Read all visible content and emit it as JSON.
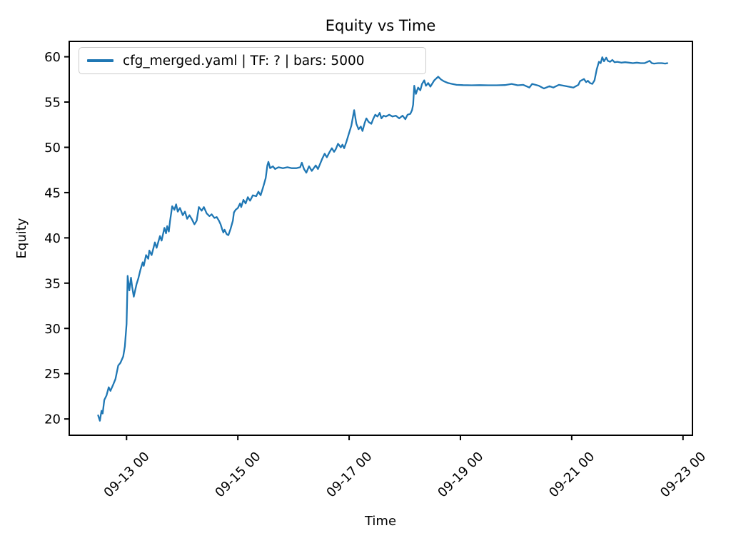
{
  "figure": {
    "title": "Equity vs Time",
    "x_axis_label": "Time",
    "y_axis_label": "Equity",
    "legend": {
      "label": "cfg_merged.yaml | TF: ? | bars: 5000",
      "line_color": "#1f77b4"
    }
  },
  "chart_data": {
    "type": "line",
    "title": "Equity vs Time",
    "xlabel": "Time",
    "ylabel": "Equity",
    "grid": false,
    "legend_position": "upper left",
    "legend_entries": [
      "cfg_merged.yaml | TF: ? | bars: 5000"
    ],
    "line_color": "#1f77b4",
    "x_unit": "days since 09-12 00:00",
    "xlim": [
      -0.03,
      11.17
    ],
    "ylim": [
      18.2,
      61.7
    ],
    "x_ticks": [
      {
        "t": 1,
        "label": "09-13 00"
      },
      {
        "t": 3,
        "label": "09-15 00"
      },
      {
        "t": 5,
        "label": "09-17 00"
      },
      {
        "t": 7,
        "label": "09-19 00"
      },
      {
        "t": 9,
        "label": "09-21 00"
      },
      {
        "t": 11,
        "label": "09-23 00"
      }
    ],
    "y_ticks": [
      20,
      25,
      30,
      35,
      40,
      45,
      50,
      55,
      60
    ],
    "series": [
      {
        "name": "cfg_merged.yaml | TF: ? | bars: 5000",
        "points": [
          [
            0.49,
            20.4
          ],
          [
            0.52,
            19.8
          ],
          [
            0.55,
            20.9
          ],
          [
            0.57,
            20.6
          ],
          [
            0.6,
            22.1
          ],
          [
            0.64,
            22.6
          ],
          [
            0.68,
            23.5
          ],
          [
            0.71,
            23.1
          ],
          [
            0.76,
            23.8
          ],
          [
            0.8,
            24.4
          ],
          [
            0.85,
            25.9
          ],
          [
            0.89,
            26.2
          ],
          [
            0.94,
            26.9
          ],
          [
            0.97,
            28.0
          ],
          [
            1.0,
            30.5
          ],
          [
            1.01,
            33.2
          ],
          [
            1.02,
            35.8
          ],
          [
            1.05,
            34.2
          ],
          [
            1.08,
            35.6
          ],
          [
            1.1,
            34.6
          ],
          [
            1.13,
            33.5
          ],
          [
            1.18,
            34.9
          ],
          [
            1.21,
            35.5
          ],
          [
            1.25,
            36.5
          ],
          [
            1.29,
            37.3
          ],
          [
            1.31,
            36.9
          ],
          [
            1.35,
            38.1
          ],
          [
            1.39,
            37.7
          ],
          [
            1.41,
            38.6
          ],
          [
            1.45,
            38.1
          ],
          [
            1.51,
            39.5
          ],
          [
            1.54,
            38.9
          ],
          [
            1.6,
            40.2
          ],
          [
            1.63,
            39.7
          ],
          [
            1.68,
            41.1
          ],
          [
            1.71,
            40.5
          ],
          [
            1.73,
            41.3
          ],
          [
            1.76,
            40.7
          ],
          [
            1.78,
            41.8
          ],
          [
            1.82,
            43.5
          ],
          [
            1.86,
            43.1
          ],
          [
            1.89,
            43.7
          ],
          [
            1.92,
            42.9
          ],
          [
            1.96,
            43.3
          ],
          [
            2.01,
            42.5
          ],
          [
            2.05,
            42.9
          ],
          [
            2.09,
            42.1
          ],
          [
            2.13,
            42.5
          ],
          [
            2.17,
            42.1
          ],
          [
            2.22,
            41.5
          ],
          [
            2.26,
            41.9
          ],
          [
            2.3,
            43.4
          ],
          [
            2.35,
            43.0
          ],
          [
            2.39,
            43.4
          ],
          [
            2.44,
            42.7
          ],
          [
            2.49,
            42.4
          ],
          [
            2.53,
            42.6
          ],
          [
            2.58,
            42.2
          ],
          [
            2.62,
            42.3
          ],
          [
            2.66,
            41.9
          ],
          [
            2.69,
            41.5
          ],
          [
            2.72,
            40.9
          ],
          [
            2.74,
            40.6
          ],
          [
            2.76,
            40.9
          ],
          [
            2.8,
            40.4
          ],
          [
            2.83,
            40.3
          ],
          [
            2.87,
            41.0
          ],
          [
            2.91,
            41.9
          ],
          [
            2.93,
            42.8
          ],
          [
            2.96,
            43.1
          ],
          [
            3.0,
            43.3
          ],
          [
            3.04,
            43.8
          ],
          [
            3.06,
            43.4
          ],
          [
            3.1,
            44.2
          ],
          [
            3.14,
            43.8
          ],
          [
            3.18,
            44.5
          ],
          [
            3.22,
            44.1
          ],
          [
            3.27,
            44.7
          ],
          [
            3.33,
            44.6
          ],
          [
            3.37,
            45.1
          ],
          [
            3.41,
            44.7
          ],
          [
            3.46,
            45.7
          ],
          [
            3.5,
            46.6
          ],
          [
            3.53,
            48.0
          ],
          [
            3.55,
            48.4
          ],
          [
            3.58,
            47.7
          ],
          [
            3.63,
            47.9
          ],
          [
            3.67,
            47.6
          ],
          [
            3.73,
            47.8
          ],
          [
            3.81,
            47.7
          ],
          [
            3.89,
            47.8
          ],
          [
            3.97,
            47.7
          ],
          [
            4.05,
            47.7
          ],
          [
            4.12,
            47.8
          ],
          [
            4.15,
            48.3
          ],
          [
            4.19,
            47.6
          ],
          [
            4.23,
            47.2
          ],
          [
            4.28,
            47.9
          ],
          [
            4.33,
            47.4
          ],
          [
            4.4,
            48.0
          ],
          [
            4.44,
            47.6
          ],
          [
            4.52,
            48.8
          ],
          [
            4.56,
            49.3
          ],
          [
            4.6,
            48.9
          ],
          [
            4.65,
            49.5
          ],
          [
            4.69,
            49.9
          ],
          [
            4.73,
            49.5
          ],
          [
            4.76,
            49.8
          ],
          [
            4.8,
            50.4
          ],
          [
            4.85,
            50.0
          ],
          [
            4.88,
            50.3
          ],
          [
            4.91,
            49.9
          ],
          [
            4.95,
            50.6
          ],
          [
            4.99,
            51.4
          ],
          [
            5.04,
            52.4
          ],
          [
            5.09,
            54.1
          ],
          [
            5.13,
            52.6
          ],
          [
            5.17,
            52.0
          ],
          [
            5.21,
            52.3
          ],
          [
            5.24,
            51.8
          ],
          [
            5.28,
            52.7
          ],
          [
            5.31,
            53.2
          ],
          [
            5.35,
            52.8
          ],
          [
            5.4,
            52.6
          ],
          [
            5.43,
            53.1
          ],
          [
            5.47,
            53.6
          ],
          [
            5.51,
            53.4
          ],
          [
            5.55,
            53.8
          ],
          [
            5.58,
            53.2
          ],
          [
            5.62,
            53.5
          ],
          [
            5.66,
            53.4
          ],
          [
            5.72,
            53.6
          ],
          [
            5.78,
            53.4
          ],
          [
            5.84,
            53.5
          ],
          [
            5.9,
            53.2
          ],
          [
            5.96,
            53.5
          ],
          [
            6.01,
            53.1
          ],
          [
            6.05,
            53.6
          ],
          [
            6.1,
            53.7
          ],
          [
            6.13,
            54.1
          ],
          [
            6.15,
            54.7
          ],
          [
            6.17,
            56.8
          ],
          [
            6.2,
            55.9
          ],
          [
            6.24,
            56.6
          ],
          [
            6.28,
            56.3
          ],
          [
            6.31,
            57.0
          ],
          [
            6.35,
            57.4
          ],
          [
            6.38,
            56.8
          ],
          [
            6.42,
            57.1
          ],
          [
            6.46,
            56.7
          ],
          [
            6.53,
            57.4
          ],
          [
            6.6,
            57.8
          ],
          [
            6.65,
            57.5
          ],
          [
            6.7,
            57.3
          ],
          [
            6.78,
            57.1
          ],
          [
            6.85,
            57.0
          ],
          [
            6.93,
            56.9
          ],
          [
            7.05,
            56.87
          ],
          [
            7.2,
            56.85
          ],
          [
            7.35,
            56.87
          ],
          [
            7.5,
            56.85
          ],
          [
            7.65,
            56.85
          ],
          [
            7.8,
            56.88
          ],
          [
            7.92,
            57.0
          ],
          [
            8.03,
            56.85
          ],
          [
            8.13,
            56.9
          ],
          [
            8.24,
            56.6
          ],
          [
            8.29,
            57.0
          ],
          [
            8.41,
            56.8
          ],
          [
            8.5,
            56.5
          ],
          [
            8.6,
            56.75
          ],
          [
            8.67,
            56.6
          ],
          [
            8.77,
            56.9
          ],
          [
            8.9,
            56.75
          ],
          [
            9.03,
            56.6
          ],
          [
            9.12,
            56.9
          ],
          [
            9.15,
            57.3
          ],
          [
            9.22,
            57.55
          ],
          [
            9.26,
            57.2
          ],
          [
            9.29,
            57.35
          ],
          [
            9.33,
            57.1
          ],
          [
            9.37,
            57.0
          ],
          [
            9.41,
            57.4
          ],
          [
            9.45,
            58.6
          ],
          [
            9.49,
            59.45
          ],
          [
            9.52,
            59.3
          ],
          [
            9.55,
            59.95
          ],
          [
            9.58,
            59.5
          ],
          [
            9.62,
            59.9
          ],
          [
            9.65,
            59.55
          ],
          [
            9.69,
            59.45
          ],
          [
            9.73,
            59.65
          ],
          [
            9.77,
            59.4
          ],
          [
            9.82,
            59.45
          ],
          [
            9.89,
            59.35
          ],
          [
            9.96,
            59.4
          ],
          [
            10.03,
            59.35
          ],
          [
            10.1,
            59.3
          ],
          [
            10.17,
            59.35
          ],
          [
            10.24,
            59.3
          ],
          [
            10.31,
            59.3
          ],
          [
            10.4,
            59.55
          ],
          [
            10.44,
            59.3
          ],
          [
            10.48,
            59.25
          ],
          [
            10.55,
            59.3
          ],
          [
            10.62,
            59.3
          ],
          [
            10.68,
            59.25
          ],
          [
            10.72,
            59.3
          ]
        ]
      }
    ]
  }
}
